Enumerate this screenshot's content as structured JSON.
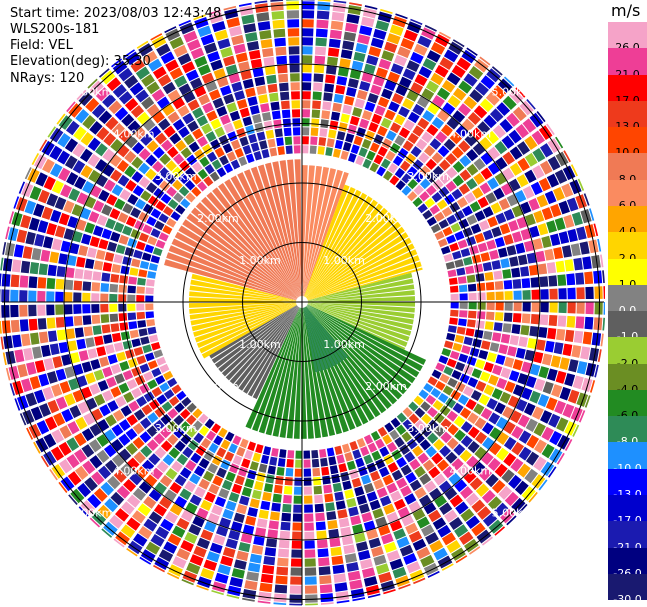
{
  "info": {
    "start_time": "Start time: 2023/08/03 12:43:48",
    "instrument": "WLS200s-181",
    "field": "Field: VEL",
    "elevation": "Elevation(deg): 35.30",
    "nrays": "NRays: 120"
  },
  "colorbar": {
    "unit": "m/s",
    "labels": [
      "26.0",
      "21.0",
      "17.0",
      "13.0",
      "10.0",
      "8.0",
      "6.0",
      "4.0",
      "2.0",
      "1.0",
      "0.0",
      "-1.0",
      "-2.0",
      "-4.0",
      "-6.0",
      "-8.0",
      "-10.0",
      "-13.0",
      "-17.0",
      "-21.0",
      "-26.0",
      "-30.0"
    ],
    "colors": [
      "#f5a3c8",
      "#ee3e96",
      "#ff0000",
      "#ee3a1c",
      "#ff4500",
      "#f07a55",
      "#fa8b60",
      "#ffa500",
      "#ffd500",
      "#ffff00",
      "#828282",
      "#5f5f5f",
      "#9acd32",
      "#6b8e23",
      "#228b22",
      "#2e8b57",
      "#1e90ff",
      "#0000ff",
      "#0000cd",
      "#1b1bb0",
      "#000080",
      "#191970"
    ]
  },
  "chart_data": {
    "type": "ppi",
    "field": "VEL",
    "units": "m/s",
    "nrays": 120,
    "elevation_deg": 35.3,
    "range_rings_km": [
      1.0,
      2.0,
      3.0,
      4.0,
      5.0
    ],
    "ring_labels": [
      "1.00km",
      "2.00km",
      "3.00km",
      "4.00km",
      "5.00km"
    ],
    "max_range_km": 5.1,
    "color_scale": [
      -30,
      -26,
      -21,
      -17,
      -13,
      -10,
      -8,
      -6,
      -4,
      -2,
      -1,
      0,
      1,
      2,
      4,
      6,
      8,
      10,
      13,
      17,
      21,
      26
    ],
    "sectors": [
      {
        "az_from": 285,
        "az_to": 360,
        "range_to_km": 2.4,
        "value": 8.0
      },
      {
        "az_from": 0,
        "az_to": 20,
        "range_to_km": 2.3,
        "value": 6.0
      },
      {
        "az_from": 20,
        "az_to": 75,
        "range_to_km": 2.1,
        "value": 2.0
      },
      {
        "az_from": 75,
        "az_to": 115,
        "range_to_km": 1.9,
        "value": -2.0
      },
      {
        "az_from": 115,
        "az_to": 205,
        "range_to_km": 2.3,
        "value": -6.0
      },
      {
        "az_from": 140,
        "az_to": 170,
        "range_to_km": 1.2,
        "value": -8.0
      },
      {
        "az_from": 205,
        "az_to": 240,
        "range_to_km": 1.8,
        "value": -1.0
      },
      {
        "az_from": 240,
        "az_to": 285,
        "range_to_km": 1.9,
        "value": 2.0
      }
    ],
    "noise_beyond_km": 2.5,
    "grid": true
  }
}
